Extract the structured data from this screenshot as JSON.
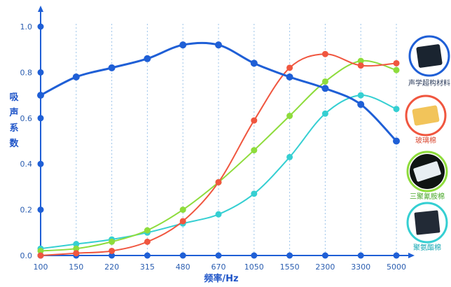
{
  "chart_data": {
    "type": "line",
    "xlabel": "频率/Hz",
    "ylabel": "吸声系数",
    "categories": [
      "100",
      "150",
      "220",
      "315",
      "480",
      "670",
      "1050",
      "1550",
      "2300",
      "3300",
      "5000"
    ],
    "ylim": [
      0,
      1.0
    ],
    "yticks": [
      "0.0",
      "0.2",
      "0.4",
      "0.6",
      "0.8",
      "1.0"
    ],
    "grid": "vertical dotted",
    "legend_position": "right",
    "series": [
      {
        "name": "声学超构材料",
        "color": "#1f5fd6",
        "values": [
          0.7,
          0.78,
          0.82,
          0.86,
          0.92,
          0.92,
          0.84,
          0.78,
          0.73,
          0.66,
          0.5
        ]
      },
      {
        "name": "玻璃棉",
        "color": "#f0563f",
        "values": [
          0.0,
          0.01,
          0.02,
          0.06,
          0.15,
          0.32,
          0.59,
          0.82,
          0.88,
          0.83,
          0.84
        ]
      },
      {
        "name": "三聚氰胺棉",
        "color": "#8edc3c",
        "values": [
          0.02,
          0.03,
          0.06,
          0.11,
          0.2,
          0.32,
          0.46,
          0.61,
          0.76,
          0.85,
          0.81
        ]
      },
      {
        "name": "聚氨酯棉",
        "color": "#35cfd2",
        "values": [
          0.03,
          0.05,
          0.07,
          0.1,
          0.14,
          0.18,
          0.27,
          0.43,
          0.62,
          0.7,
          0.64
        ]
      }
    ]
  }
}
